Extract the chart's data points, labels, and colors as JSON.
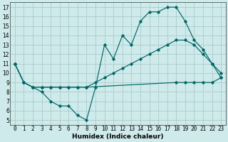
{
  "xlabel": "Humidex (Indice chaleur)",
  "background_color": "#ceeaea",
  "grid_color": "#aacccc",
  "line_color": "#006666",
  "xlim": [
    -0.5,
    23.5
  ],
  "ylim": [
    4.5,
    17.5
  ],
  "xticks": [
    0,
    1,
    2,
    3,
    4,
    5,
    6,
    7,
    8,
    9,
    10,
    11,
    12,
    13,
    14,
    15,
    16,
    17,
    18,
    19,
    20,
    21,
    22,
    23
  ],
  "yticks": [
    5,
    6,
    7,
    8,
    9,
    10,
    11,
    12,
    13,
    14,
    15,
    16,
    17
  ],
  "series1_x": [
    0,
    1,
    2,
    3,
    4,
    5,
    6,
    7,
    8,
    9,
    10,
    11,
    12,
    13,
    14,
    15,
    16,
    17,
    18,
    19,
    20,
    21,
    22,
    23
  ],
  "series1_y": [
    11,
    9,
    8.5,
    8,
    7,
    6.5,
    6.5,
    5.5,
    5,
    8.5,
    13,
    11.5,
    14,
    13,
    15.5,
    16.5,
    16.5,
    17,
    17,
    15.5,
    13.5,
    12.5,
    11,
    9.5
  ],
  "series2_x": [
    0,
    1,
    2,
    3,
    4,
    5,
    6,
    7,
    8,
    9,
    10,
    11,
    12,
    13,
    14,
    15,
    16,
    17,
    18,
    19,
    20,
    21,
    22,
    23
  ],
  "series2_y": [
    11,
    9,
    8.5,
    8.5,
    8.5,
    8.5,
    8.5,
    8.5,
    8.5,
    9,
    9.5,
    10,
    10.5,
    11,
    11.5,
    12,
    12.5,
    13,
    13.5,
    13.5,
    13,
    12,
    11,
    10
  ],
  "series3_x": [
    0,
    1,
    2,
    3,
    4,
    5,
    6,
    7,
    8,
    18,
    19,
    20,
    21,
    22,
    23
  ],
  "series3_y": [
    11,
    9,
    8.5,
    8.5,
    8.5,
    8.5,
    8.5,
    8.5,
    8.5,
    9,
    9,
    9,
    9,
    9,
    9.5
  ],
  "tick_fontsize": 5.5,
  "xlabel_fontsize": 6.5,
  "marker_size": 1.8,
  "linewidth": 0.85
}
